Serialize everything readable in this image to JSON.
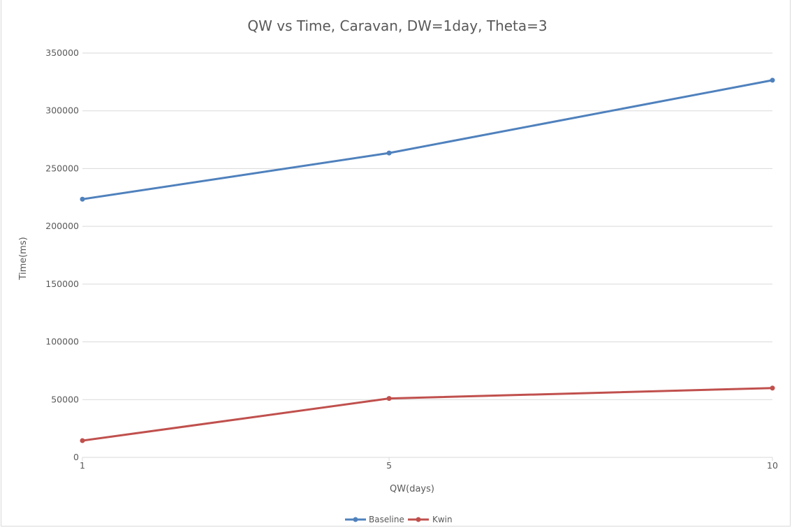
{
  "chart_data": {
    "type": "line",
    "title": "QW vs Time, Caravan, DW=1day, Theta=3",
    "xlabel": "QW(days)",
    "ylabel": "Time(ms)",
    "x": [
      "1",
      "5",
      "10"
    ],
    "ylim": [
      0,
      350000
    ],
    "yticks": [
      "0",
      "50000",
      "100000",
      "150000",
      "200000",
      "250000",
      "300000",
      "350000"
    ],
    "grid": true,
    "legend": "bottom",
    "series": [
      {
        "name": "Baseline",
        "color": "#4f81bd",
        "values": [
          223500,
          263500,
          326500
        ]
      },
      {
        "name": "Kwin",
        "color": "#c0504d",
        "values": [
          14500,
          51000,
          60000
        ]
      }
    ]
  }
}
